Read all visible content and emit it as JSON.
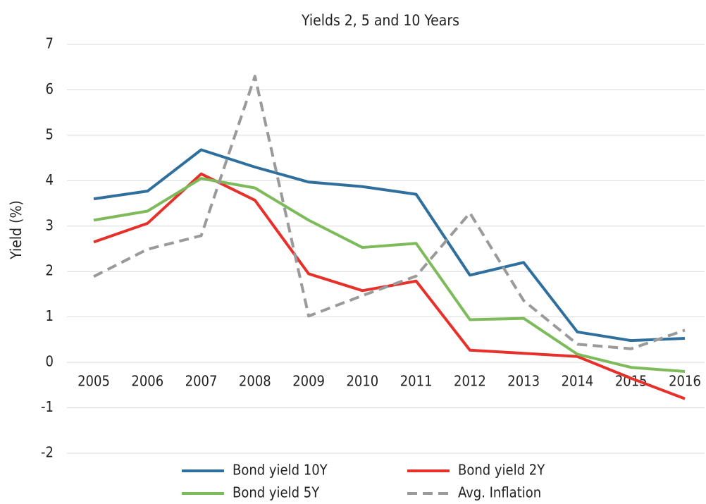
{
  "chart_data": {
    "type": "line",
    "title": "Yields 2, 5 and 10 Years",
    "y_label": "Yield (%)",
    "categories": [
      "2005",
      "2006",
      "2007",
      "2008",
      "2009",
      "2010",
      "2011",
      "2012",
      "2013",
      "2014",
      "2015",
      "2016"
    ],
    "series": [
      {
        "name": "Bond yield 10Y",
        "color": "#2e6f9e",
        "dashed": false,
        "values": [
          3.6,
          3.77,
          4.68,
          4.3,
          3.97,
          3.87,
          3.7,
          1.92,
          2.2,
          0.67,
          0.48,
          0.53
        ]
      },
      {
        "name": "Bond yield 2Y",
        "color": "#e8302a",
        "dashed": false,
        "values": [
          2.65,
          3.06,
          4.15,
          3.57,
          1.95,
          1.58,
          1.79,
          0.27,
          0.2,
          0.13,
          -0.35,
          -0.8
        ]
      },
      {
        "name": "Bond yield 5Y",
        "color": "#7dbb5a",
        "dashed": false,
        "values": [
          3.13,
          3.33,
          4.05,
          3.84,
          3.13,
          2.53,
          2.62,
          0.94,
          0.97,
          0.18,
          -0.11,
          -0.2
        ]
      },
      {
        "name": "Avg. Inflation",
        "color": "#9a9a9a",
        "dashed": true,
        "values": [
          1.89,
          2.49,
          2.79,
          6.3,
          1.02,
          1.47,
          1.9,
          3.29,
          1.36,
          0.4,
          0.3,
          0.71
        ]
      }
    ],
    "ylim": [
      -2,
      7
    ],
    "yticks": [
      -2,
      -1,
      0,
      1,
      2,
      3,
      4,
      5,
      6,
      7
    ],
    "grid": true
  }
}
